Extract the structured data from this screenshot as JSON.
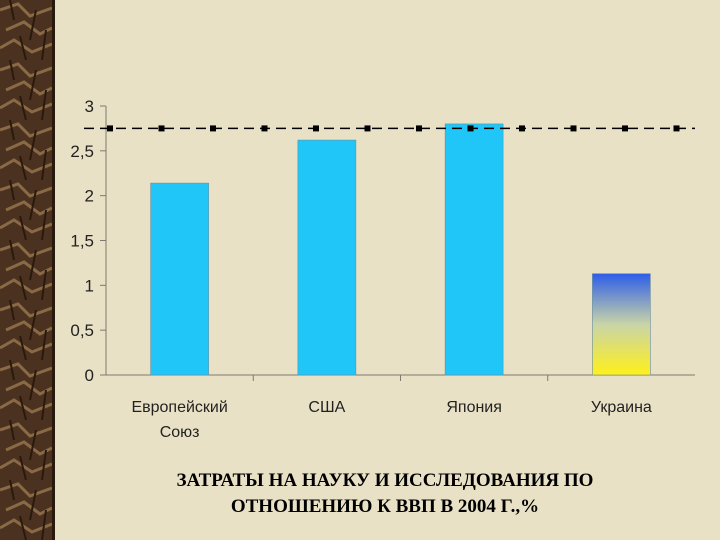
{
  "slide": {
    "caption_line1": "ЗАТРАТЫ НА НАУКУ И ИССЛЕДОВАНИЯ ПО",
    "caption_line2": "ОТНОШЕНИЮ К ВВП В 2004 Г.,%"
  },
  "colors": {
    "background": "#e9e1c6",
    "bar": "#1fc6f7",
    "ukraine_top": "#2e5ee8",
    "ukraine_bottom": "#fff01a",
    "reference_line": "#000000",
    "sidebar_dark": "#3b2616",
    "sidebar_light": "#7b5a36"
  },
  "chart_data": {
    "type": "bar",
    "categories": [
      [
        "Европейский",
        "Союз"
      ],
      [
        "США"
      ],
      [
        "Япония"
      ],
      [
        "Украина"
      ]
    ],
    "values": [
      2.14,
      2.62,
      2.8,
      1.13
    ],
    "reference_value": 2.75,
    "ylim": [
      0,
      3
    ],
    "yticks": [
      "0",
      "0,5",
      "1",
      "1,5",
      "2",
      "2,5",
      "3"
    ],
    "ytick_values": [
      0,
      0.5,
      1,
      1.5,
      2,
      2.5,
      3
    ],
    "grid": false,
    "legend": "none",
    "title": "",
    "xlabel": "",
    "ylabel": ""
  }
}
